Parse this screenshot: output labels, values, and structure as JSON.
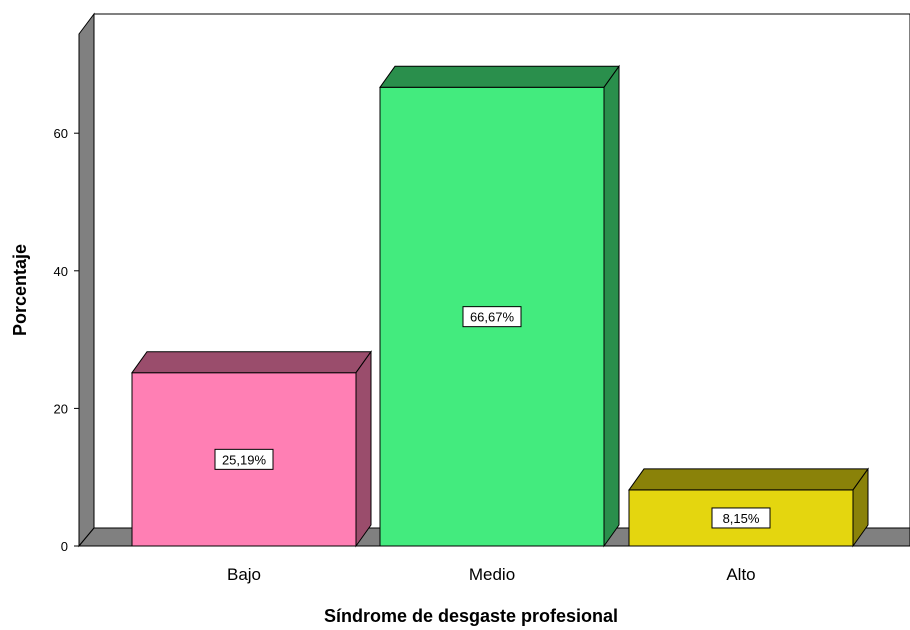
{
  "chart_data": {
    "type": "bar",
    "title": "",
    "xlabel": "Síndrome de desgaste profesional",
    "ylabel": "Porcentaje",
    "categories": [
      "Bajo",
      "Medio",
      "Alto"
    ],
    "values": [
      25.19,
      66.67,
      8.15
    ],
    "data_labels": [
      "25,19%",
      "66,67%",
      "8,15%"
    ],
    "ylim": [
      0,
      70
    ],
    "yticks": [
      0,
      20,
      40,
      60
    ],
    "grid": false,
    "style": "3d",
    "colors": {
      "Bajo": {
        "front": "#ff7fb4",
        "top": "#9a4d6c",
        "side": "#9a4d6c"
      },
      "Medio": {
        "front": "#43eb7e",
        "top": "#2a8f4c",
        "side": "#2a8f4c"
      },
      "Alto": {
        "front": "#e4d60f",
        "top": "#8a8209",
        "side": "#8a8209"
      },
      "walls": "#808080"
    }
  }
}
